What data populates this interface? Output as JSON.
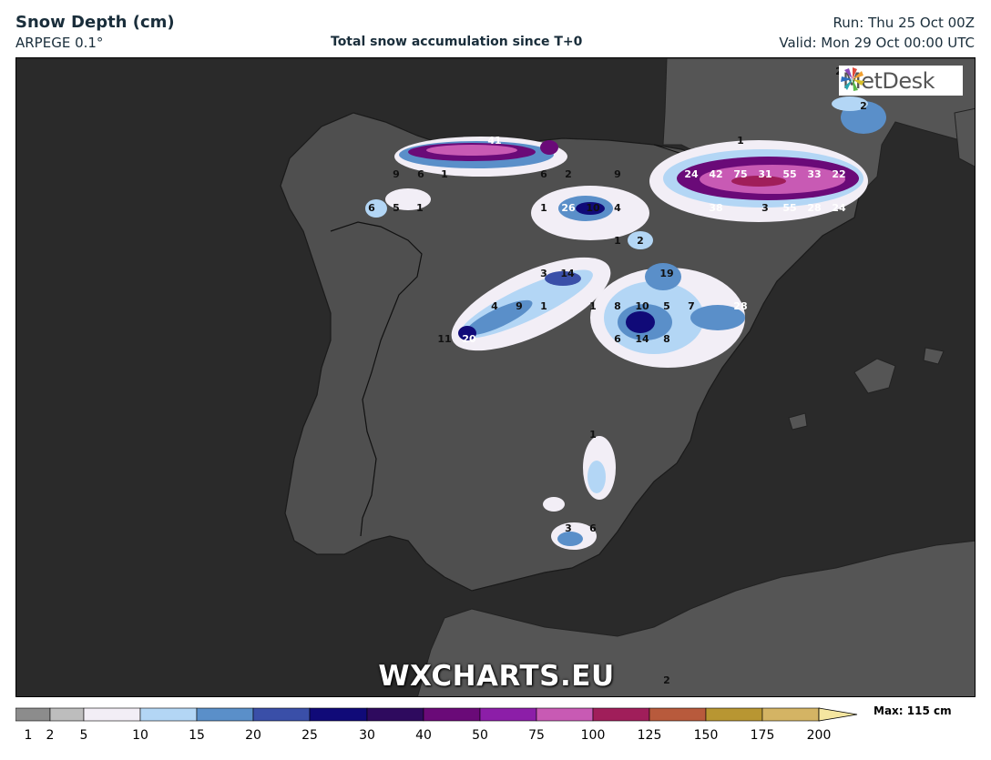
{
  "header": {
    "title": "Snow Depth (cm)",
    "model": "ARPEGE 0.1°",
    "subtitle": "Total snow accumulation since T+0",
    "run": "Run: Thu 25 Oct 00Z",
    "valid": "Valid: Mon 29 Oct 00:00 UTC"
  },
  "logo": {
    "text": "MetDesk"
  },
  "watermark": "WXCHARTS.EU",
  "colorbar": {
    "max_label": "Max: 115 cm",
    "ticks": [
      "1",
      "2",
      "5",
      "10",
      "15",
      "20",
      "25",
      "30",
      "40",
      "50",
      "75",
      "100",
      "125",
      "150",
      "175",
      "200"
    ],
    "colors": [
      "#8c8c8c",
      "#bdbdbd",
      "#f2eef6",
      "#b3d6f5",
      "#5a8fc9",
      "#3a4fa8",
      "#100a78",
      "#2e0a5e",
      "#6a0a78",
      "#8c1ea8",
      "#c85ab4",
      "#a01e5a",
      "#b85a3c",
      "#b89632",
      "#d4b464",
      "#f5e6a0"
    ]
  },
  "map_values": [
    {
      "t": "41"
    },
    {
      "t": "9"
    },
    {
      "t": "6"
    },
    {
      "t": "1"
    },
    {
      "t": "6"
    },
    {
      "t": "2"
    },
    {
      "t": "9"
    },
    {
      "t": "6"
    },
    {
      "t": "5"
    },
    {
      "t": "1"
    },
    {
      "t": "1"
    },
    {
      "t": "26"
    },
    {
      "t": "10"
    },
    {
      "t": "4"
    },
    {
      "t": "1"
    },
    {
      "t": "2"
    },
    {
      "t": "3"
    },
    {
      "t": "14"
    },
    {
      "t": "19"
    },
    {
      "t": "4"
    },
    {
      "t": "9"
    },
    {
      "t": "1"
    },
    {
      "t": "1"
    },
    {
      "t": "8"
    },
    {
      "t": "10"
    },
    {
      "t": "5"
    },
    {
      "t": "7"
    },
    {
      "t": "28"
    },
    {
      "t": "11"
    },
    {
      "t": "20"
    },
    {
      "t": "6"
    },
    {
      "t": "14"
    },
    {
      "t": "8"
    },
    {
      "t": "1"
    },
    {
      "t": "24"
    },
    {
      "t": "42"
    },
    {
      "t": "75"
    },
    {
      "t": "31"
    },
    {
      "t": "55"
    },
    {
      "t": "33"
    },
    {
      "t": "22"
    },
    {
      "t": "38"
    },
    {
      "t": "3"
    },
    {
      "t": "55"
    },
    {
      "t": "28"
    },
    {
      "t": "24"
    },
    {
      "t": "2"
    },
    {
      "t": "2"
    },
    {
      "t": "1"
    },
    {
      "t": "3"
    },
    {
      "t": "6"
    },
    {
      "t": "2"
    }
  ]
}
